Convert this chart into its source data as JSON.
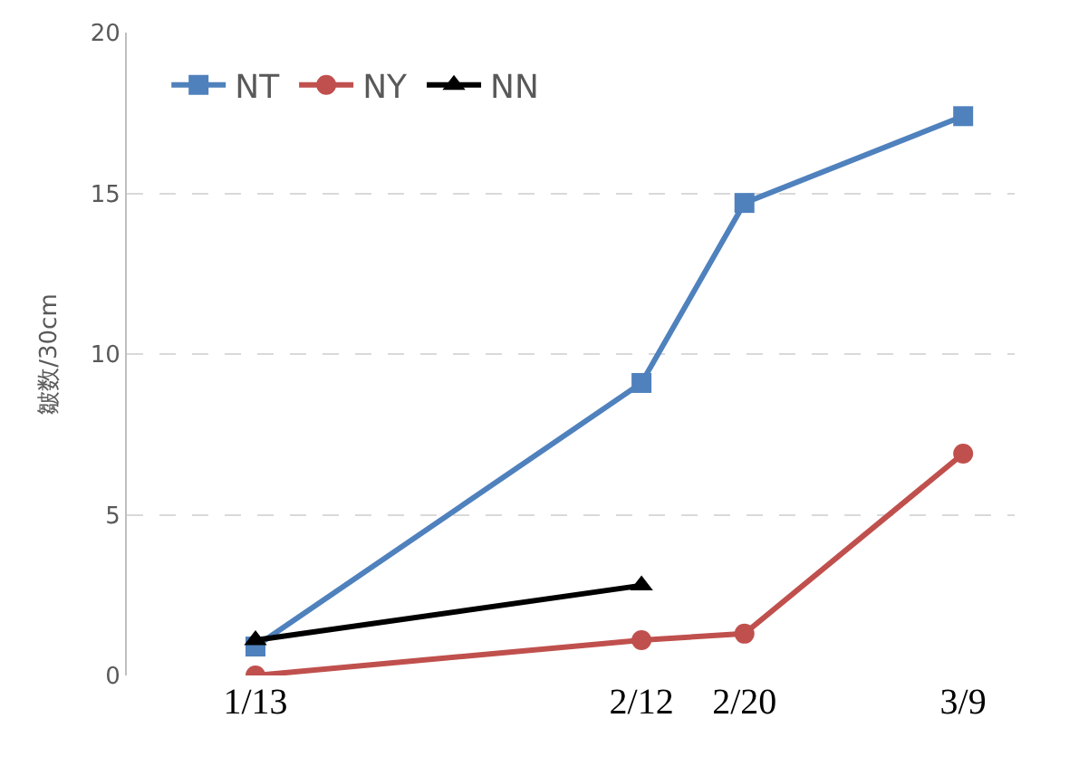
{
  "chart_data": {
    "type": "line",
    "ylabel": "皺数/30cm",
    "x": [
      "--01-13",
      "--02-12",
      "--02-20",
      "--03-09"
    ],
    "xlim": [
      "--01-03",
      "--03-13"
    ],
    "xticks": [
      {
        "value": "--01-13",
        "label": "1/13"
      },
      {
        "value": "--02-12",
        "label": "2/12"
      },
      {
        "value": "--02-20",
        "label": "2/20"
      },
      {
        "value": "--03-09",
        "label": "3/9"
      }
    ],
    "ylim": [
      0,
      20
    ],
    "yticks": [
      0,
      5,
      10,
      15,
      20
    ],
    "grid": "y",
    "legend": "top left",
    "line_style": "solid",
    "series": [
      {
        "name": "NT",
        "color": "#4f81bd",
        "marker": "square",
        "values": [
          0.9,
          9.1,
          14.7,
          17.4
        ]
      },
      {
        "name": "NY",
        "color": "#c0504d",
        "marker": "circle",
        "values": [
          0,
          1.1,
          1.3,
          6.9
        ]
      },
      {
        "name": "NN",
        "color": "#000000",
        "marker": "triangle",
        "values": [
          1.1,
          2.8,
          null,
          null
        ]
      }
    ]
  }
}
